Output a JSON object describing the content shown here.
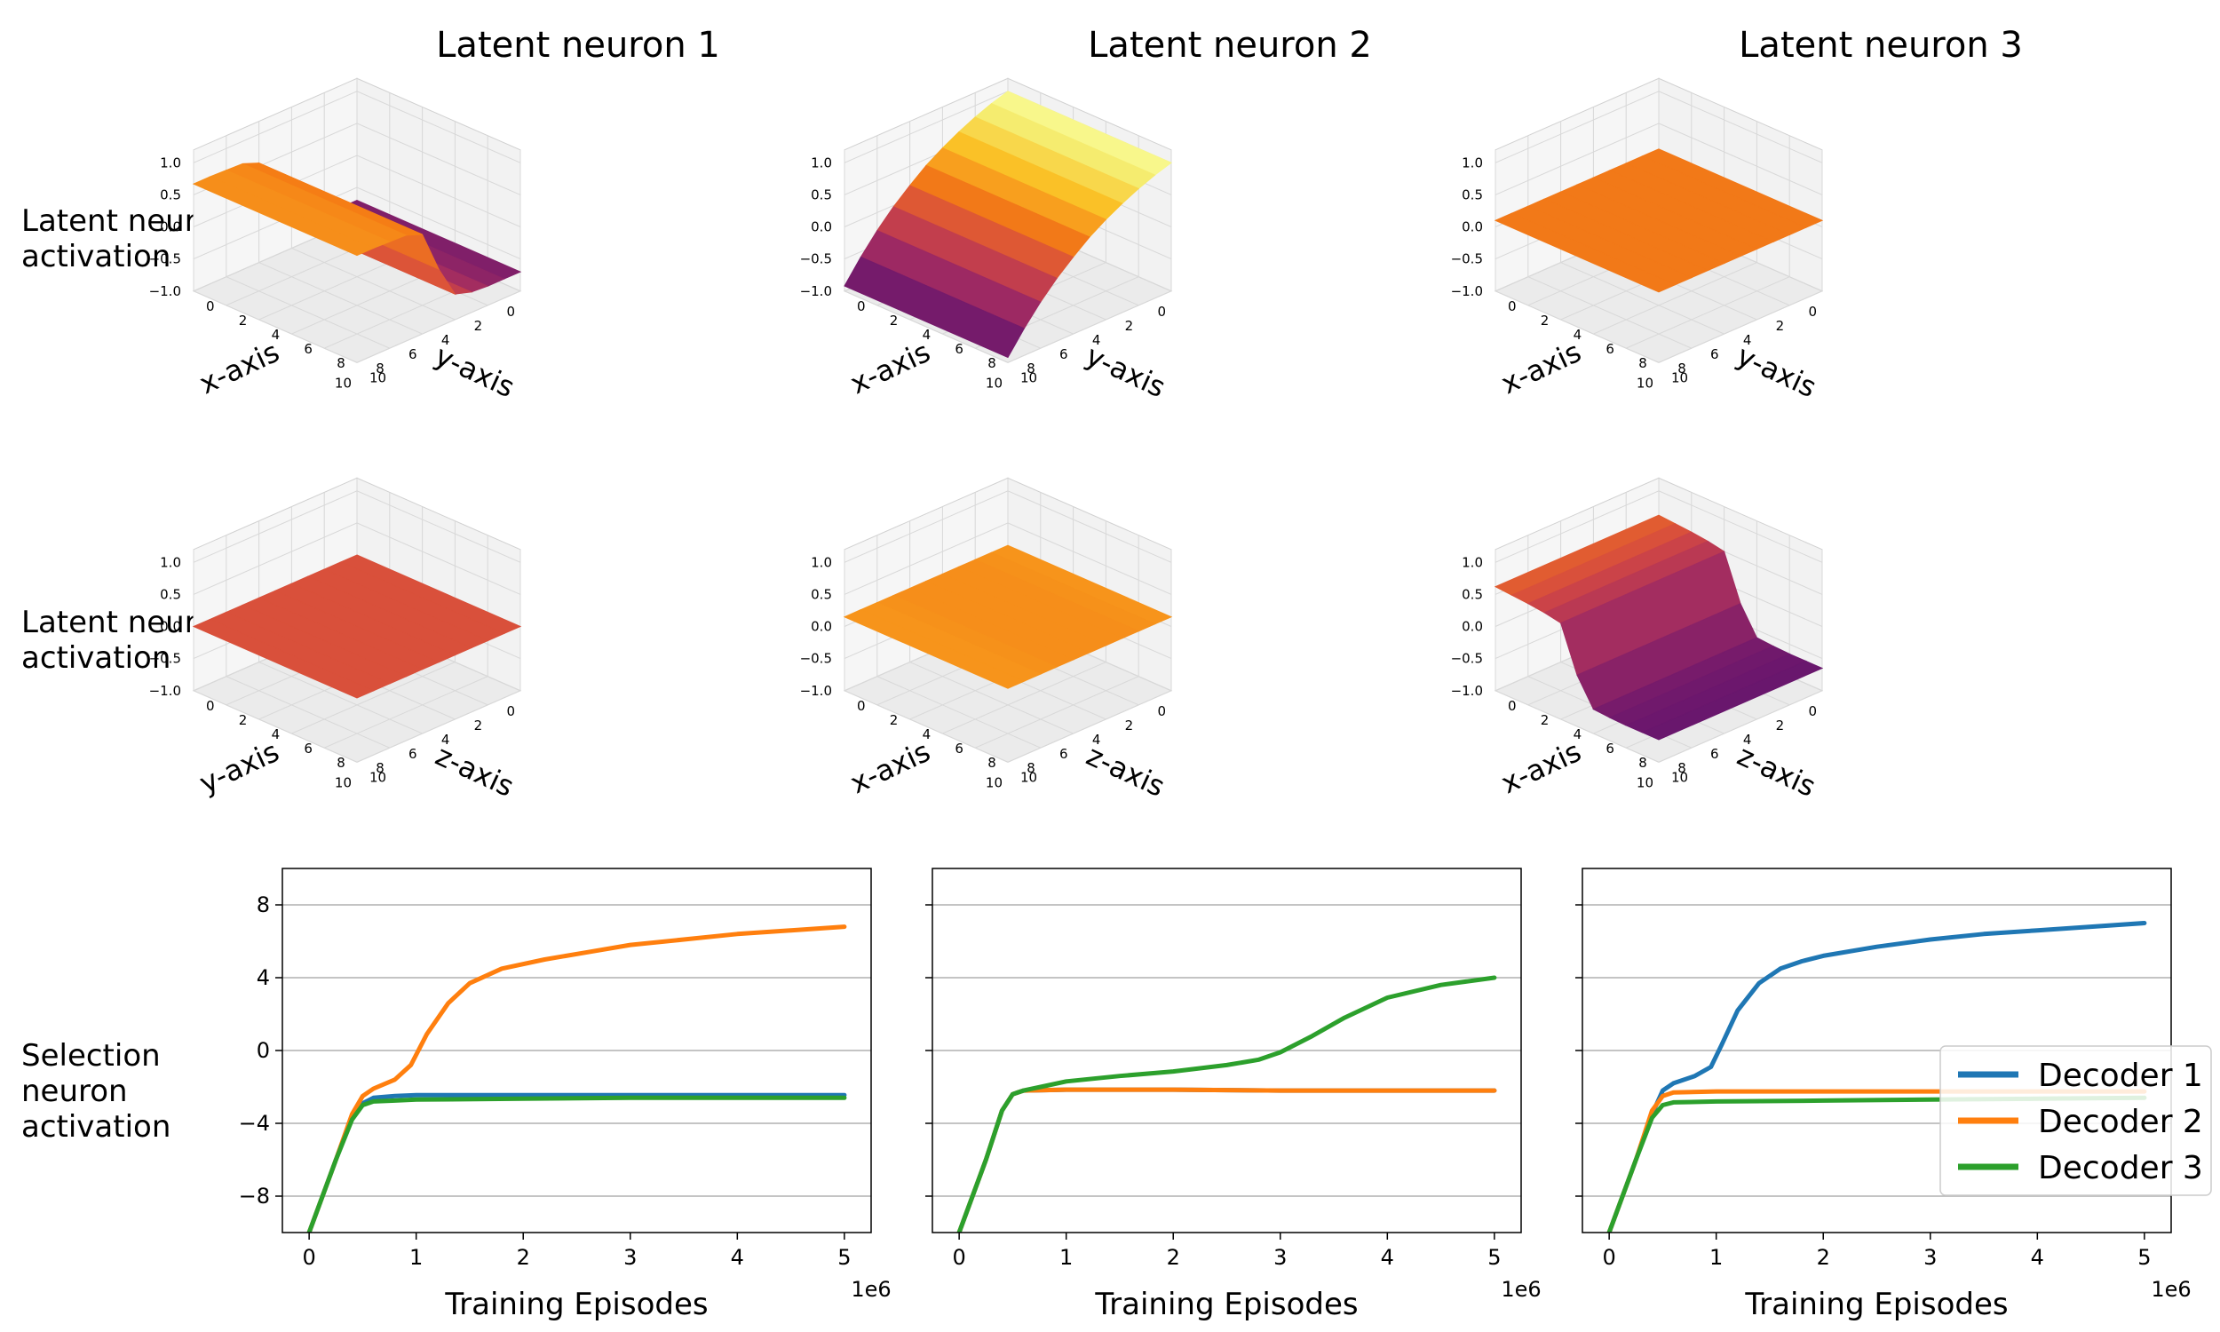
{
  "column_titles": [
    "Latent neuron 1",
    "Latent neuron 2",
    "Latent neuron 3"
  ],
  "row_labels": [
    [
      "Latent neuron",
      "activation"
    ],
    [
      "Latent neuron",
      "activation"
    ],
    [
      "Selection",
      "neuron",
      "activation"
    ]
  ],
  "colors": {
    "decoder1": "#1f77b4",
    "decoder2": "#ff7f0e",
    "decoder3": "#2ca02c",
    "colormap": "inferno",
    "grid": "#b0b0b0",
    "pane": "#f2f2f2"
  },
  "chart_data": [
    {
      "type": "surface",
      "title": "Latent neuron 1",
      "ylabel": "Latent neuron activation",
      "axis_labels": {
        "left": "y-axis",
        "right": "x-axis"
      },
      "tick_labels": {
        "left": [
          "0",
          "2",
          "4",
          "6",
          "8",
          "10"
        ],
        "right": [
          "0",
          "2",
          "4",
          "6",
          "8",
          "10"
        ],
        "z": [
          "1.0",
          "0.5",
          "0.0",
          "−0.5",
          "−1.0"
        ]
      },
      "zlim": [
        -1.0,
        1.0
      ],
      "varying_axis": "left",
      "profile": [
        -0.7,
        -0.7,
        -0.7,
        -0.68,
        -0.6,
        -0.1,
        0.55,
        0.65,
        0.66,
        0.67,
        0.67
      ],
      "color_profile": [
        0.3,
        0.32,
        0.36,
        0.42,
        0.5,
        0.56,
        0.62,
        0.64,
        0.66,
        0.66,
        0.66
      ]
    },
    {
      "type": "surface",
      "title": "Latent neuron 2",
      "ylabel": "Latent neuron activation",
      "axis_labels": {
        "left": "y-axis",
        "right": "x-axis"
      },
      "tick_labels": {
        "left": [
          "0",
          "2",
          "4",
          "6",
          "8",
          "10"
        ],
        "right": [
          "0",
          "2",
          "4",
          "6",
          "8",
          "10"
        ],
        "z": [
          "1.0",
          "0.5",
          "0.0",
          "−0.5",
          "−1.0"
        ]
      },
      "zlim": [
        -1.0,
        1.0
      ],
      "varying_axis": "left",
      "profile": [
        1.0,
        0.92,
        0.82,
        0.7,
        0.56,
        0.4,
        0.2,
        -0.02,
        -0.28,
        -0.58,
        -0.92
      ],
      "color_profile": [
        0.97,
        0.9,
        0.84,
        0.78,
        0.72,
        0.66,
        0.58,
        0.5,
        0.42,
        0.33,
        0.24
      ]
    },
    {
      "type": "surface",
      "title": "Latent neuron 3",
      "ylabel": "Latent neuron activation",
      "axis_labels": {
        "left": "y-axis",
        "right": "x-axis"
      },
      "tick_labels": {
        "left": [
          "0",
          "2",
          "4",
          "6",
          "8",
          "10"
        ],
        "right": [
          "0",
          "2",
          "4",
          "6",
          "8",
          "10"
        ],
        "z": [
          "1.0",
          "0.5",
          "0.0",
          "−0.5",
          "−1.0"
        ]
      },
      "zlim": [
        -1.0,
        1.0
      ],
      "varying_axis": "left",
      "profile": [
        0.1,
        0.1,
        0.1,
        0.1,
        0.1,
        0.1,
        0.1,
        0.1,
        0.1,
        0.1,
        0.1
      ],
      "color_profile": [
        0.62,
        0.62,
        0.62,
        0.62,
        0.62,
        0.62,
        0.62,
        0.62,
        0.62,
        0.62,
        0.62
      ]
    },
    {
      "type": "surface",
      "ylabel": "Latent neuron activation",
      "axis_labels": {
        "left": "z-axis",
        "right": "y-axis"
      },
      "tick_labels": {
        "left": [
          "0",
          "2",
          "4",
          "6",
          "8",
          "10"
        ],
        "right": [
          "0",
          "2",
          "4",
          "6",
          "8",
          "10"
        ],
        "z": [
          "1.0",
          "0.5",
          "0.0",
          "−0.5",
          "−1.0"
        ]
      },
      "zlim": [
        -1.0,
        1.0
      ],
      "varying_axis": "left",
      "profile": [
        0.0,
        0.0,
        0.0,
        0.0,
        0.0,
        0.0,
        0.0,
        0.0,
        0.0,
        0.0,
        0.0
      ],
      "color_profile": [
        0.52,
        0.52,
        0.52,
        0.52,
        0.52,
        0.52,
        0.52,
        0.52,
        0.52,
        0.52,
        0.52
      ]
    },
    {
      "type": "surface",
      "ylabel": "Latent neuron activation",
      "axis_labels": {
        "left": "z-axis",
        "right": "x-axis"
      },
      "tick_labels": {
        "left": [
          "0",
          "2",
          "4",
          "6",
          "8",
          "10"
        ],
        "right": [
          "0",
          "2",
          "4",
          "6",
          "8",
          "10"
        ],
        "z": [
          "1.0",
          "0.5",
          "0.0",
          "−0.5",
          "−1.0"
        ]
      },
      "zlim": [
        -1.0,
        1.0
      ],
      "varying_axis": "left",
      "profile": [
        0.15,
        0.15,
        0.15,
        0.15,
        0.15,
        0.15,
        0.15,
        0.15,
        0.15,
        0.15,
        0.15
      ],
      "color_profile": [
        0.67,
        0.67,
        0.66,
        0.66,
        0.66,
        0.66,
        0.66,
        0.66,
        0.67,
        0.67,
        0.67
      ]
    },
    {
      "type": "surface",
      "ylabel": "Latent neuron activation",
      "axis_labels": {
        "left": "z-axis",
        "right": "x-axis"
      },
      "tick_labels": {
        "left": [
          "0",
          "2",
          "4",
          "6",
          "8",
          "10"
        ],
        "right": [
          "0",
          "2",
          "4",
          "6",
          "8",
          "10"
        ],
        "z": [
          "1.0",
          "0.5",
          "0.0",
          "−0.5",
          "−1.0"
        ]
      },
      "zlim": [
        -1.0,
        1.0
      ],
      "varying_axis": "right",
      "profile": [
        0.62,
        0.6,
        0.58,
        0.55,
        0.5,
        -0.2,
        -0.62,
        -0.64,
        -0.65,
        -0.65,
        -0.65
      ],
      "color_profile": [
        0.56,
        0.54,
        0.5,
        0.46,
        0.42,
        0.36,
        0.3,
        0.28,
        0.27,
        0.26,
        0.26
      ]
    },
    {
      "type": "line",
      "xlabel": "Training Episodes",
      "x_offset_label": "1e6",
      "xlim": [
        -0.25,
        5.25
      ],
      "ylim": [
        -10,
        10
      ],
      "xticks": [
        "0",
        "1",
        "2",
        "3",
        "4",
        "5"
      ],
      "yticks": [
        "8",
        "4",
        "0",
        "−4",
        "−8"
      ],
      "series": [
        {
          "name": "Decoder 1",
          "x": [
            0,
            0.25,
            0.4,
            0.5,
            0.6,
            0.8,
            1.0,
            2.0,
            3.0,
            4.0,
            5.0
          ],
          "y": [
            -10,
            -6,
            -3.6,
            -2.9,
            -2.6,
            -2.5,
            -2.45,
            -2.45,
            -2.45,
            -2.45,
            -2.45
          ]
        },
        {
          "name": "Decoder 2",
          "x": [
            0,
            0.25,
            0.4,
            0.5,
            0.6,
            0.8,
            0.95,
            1.1,
            1.3,
            1.5,
            1.8,
            2.2,
            2.6,
            3.0,
            3.5,
            4.0,
            4.5,
            5.0
          ],
          "y": [
            -10,
            -6,
            -3.5,
            -2.5,
            -2.1,
            -1.6,
            -0.8,
            0.9,
            2.6,
            3.7,
            4.5,
            5.0,
            5.4,
            5.8,
            6.1,
            6.4,
            6.6,
            6.8
          ]
        },
        {
          "name": "Decoder 3",
          "x": [
            0,
            0.25,
            0.4,
            0.5,
            0.6,
            0.8,
            1.0,
            2.0,
            3.0,
            4.0,
            5.0
          ],
          "y": [
            -10,
            -6,
            -3.8,
            -3.0,
            -2.8,
            -2.75,
            -2.7,
            -2.65,
            -2.6,
            -2.6,
            -2.6
          ]
        }
      ]
    },
    {
      "type": "line",
      "xlabel": "Training Episodes",
      "x_offset_label": "1e6",
      "xlim": [
        -0.25,
        5.25
      ],
      "ylim": [
        -10,
        10
      ],
      "xticks": [
        "0",
        "1",
        "2",
        "3",
        "4",
        "5"
      ],
      "yticks": [],
      "series": [
        {
          "name": "Decoder 1",
          "x": [
            0,
            0.25,
            0.4,
            0.5,
            0.6,
            1.0,
            2.0,
            3.0,
            4.0,
            5.0
          ],
          "y": [
            -10,
            -6,
            -3.3,
            -2.4,
            -2.2,
            -2.15,
            -2.15,
            -2.2,
            -2.2,
            -2.2
          ]
        },
        {
          "name": "Decoder 2",
          "x": [
            0,
            0.25,
            0.4,
            0.5,
            0.6,
            1.0,
            2.0,
            3.0,
            4.0,
            5.0
          ],
          "y": [
            -10,
            -6,
            -3.3,
            -2.4,
            -2.2,
            -2.15,
            -2.15,
            -2.2,
            -2.2,
            -2.2
          ]
        },
        {
          "name": "Decoder 3",
          "x": [
            0,
            0.25,
            0.4,
            0.5,
            0.6,
            0.8,
            1.0,
            1.5,
            2.0,
            2.5,
            2.8,
            3.0,
            3.3,
            3.6,
            4.0,
            4.5,
            5.0
          ],
          "y": [
            -10,
            -6,
            -3.3,
            -2.4,
            -2.2,
            -1.95,
            -1.7,
            -1.4,
            -1.15,
            -0.8,
            -0.5,
            -0.1,
            0.8,
            1.8,
            2.9,
            3.6,
            4.0
          ]
        }
      ]
    },
    {
      "type": "line",
      "xlabel": "Training Episodes",
      "x_offset_label": "1e6",
      "xlim": [
        -0.25,
        5.25
      ],
      "ylim": [
        -10,
        10
      ],
      "xticks": [
        "0",
        "1",
        "2",
        "3",
        "4",
        "5"
      ],
      "yticks": [],
      "legend": {
        "placement": "right",
        "entries": [
          "Decoder 1",
          "Decoder 2",
          "Decoder 3"
        ]
      },
      "series": [
        {
          "name": "Decoder 1",
          "x": [
            0,
            0.25,
            0.4,
            0.5,
            0.6,
            0.8,
            0.95,
            1.05,
            1.2,
            1.4,
            1.6,
            1.8,
            2.0,
            2.5,
            3.0,
            3.5,
            4.0,
            4.5,
            5.0
          ],
          "y": [
            -10,
            -6,
            -3.5,
            -2.2,
            -1.8,
            -1.4,
            -0.9,
            0.3,
            2.2,
            3.7,
            4.5,
            4.9,
            5.2,
            5.7,
            6.1,
            6.4,
            6.6,
            6.8,
            7.0
          ]
        },
        {
          "name": "Decoder 2",
          "x": [
            0,
            0.25,
            0.4,
            0.5,
            0.6,
            1.0,
            2.0,
            3.0,
            4.0,
            5.0
          ],
          "y": [
            -10,
            -6,
            -3.3,
            -2.5,
            -2.3,
            -2.25,
            -2.25,
            -2.25,
            -2.25,
            -2.25
          ]
        },
        {
          "name": "Decoder 3",
          "x": [
            0,
            0.25,
            0.4,
            0.5,
            0.6,
            1.0,
            2.0,
            3.0,
            4.0,
            5.0
          ],
          "y": [
            -10,
            -6,
            -3.7,
            -3.0,
            -2.85,
            -2.8,
            -2.75,
            -2.7,
            -2.65,
            -2.6
          ]
        }
      ]
    }
  ]
}
